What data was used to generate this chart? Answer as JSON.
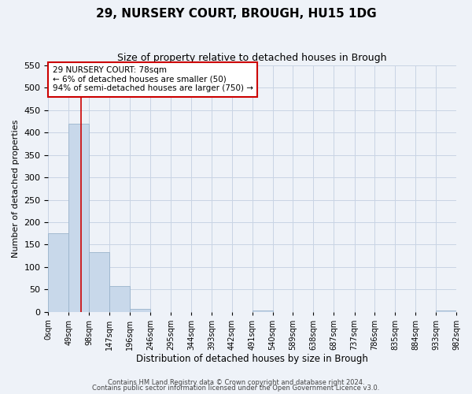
{
  "title": "29, NURSERY COURT, BROUGH, HU15 1DG",
  "subtitle": "Size of property relative to detached houses in Brough",
  "xlabel": "Distribution of detached houses by size in Brough",
  "ylabel": "Number of detached properties",
  "bin_edges": [
    0,
    49,
    98,
    147,
    196,
    246,
    295,
    344,
    393,
    442,
    491,
    540,
    589,
    638,
    687,
    737,
    786,
    835,
    884,
    933,
    982
  ],
  "bin_labels": [
    "0sqm",
    "49sqm",
    "98sqm",
    "147sqm",
    "196sqm",
    "246sqm",
    "295sqm",
    "344sqm",
    "393sqm",
    "442sqm",
    "491sqm",
    "540sqm",
    "589sqm",
    "638sqm",
    "687sqm",
    "737sqm",
    "786sqm",
    "835sqm",
    "884sqm",
    "933sqm",
    "982sqm"
  ],
  "bar_heights": [
    175,
    420,
    133,
    58,
    7,
    0,
    0,
    0,
    0,
    0,
    2,
    0,
    0,
    0,
    0,
    0,
    0,
    0,
    0,
    2
  ],
  "bar_color": "#c8d8ea",
  "bar_edgecolor": "#9ab4cc",
  "property_line_x": 78,
  "property_line_color": "#cc0000",
  "annotation_box_text": "29 NURSERY COURT: 78sqm\n← 6% of detached houses are smaller (50)\n94% of semi-detached houses are larger (750) →",
  "annotation_box_color": "#cc0000",
  "ylim": [
    0,
    550
  ],
  "yticks": [
    0,
    50,
    100,
    150,
    200,
    250,
    300,
    350,
    400,
    450,
    500,
    550
  ],
  "xlim_left": 0,
  "xlim_right": 982,
  "grid_color": "#c8d4e4",
  "background_color": "#eef2f8",
  "footer_line1": "Contains HM Land Registry data © Crown copyright and database right 2024.",
  "footer_line2": "Contains public sector information licensed under the Open Government Licence v3.0."
}
